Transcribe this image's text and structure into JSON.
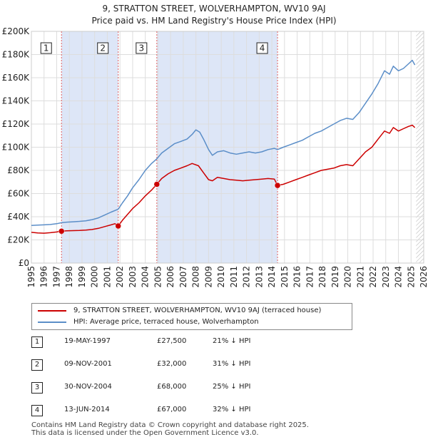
{
  "chart_data": {
    "type": "line",
    "title": "9, STRATTON STREET, WOLVERHAMPTON, WV10 9AJ",
    "subtitle": "Price paid vs. HM Land Registry's House Price Index (HPI)",
    "xlim": [
      1995,
      2026
    ],
    "ylim": [
      0,
      200000
    ],
    "x_ticks": [
      1995,
      1996,
      1997,
      1998,
      1999,
      2000,
      2001,
      2002,
      2003,
      2004,
      2005,
      2006,
      2007,
      2008,
      2009,
      2010,
      2011,
      2012,
      2013,
      2014,
      2015,
      2016,
      2017,
      2018,
      2019,
      2020,
      2021,
      2022,
      2023,
      2024,
      2025,
      2026
    ],
    "y_ticks": [
      {
        "value": 0,
        "label": "£0"
      },
      {
        "value": 20000,
        "label": "£20K"
      },
      {
        "value": 40000,
        "label": "£40K"
      },
      {
        "value": 60000,
        "label": "£60K"
      },
      {
        "value": 80000,
        "label": "£80K"
      },
      {
        "value": 100000,
        "label": "£100K"
      },
      {
        "value": 120000,
        "label": "£120K"
      },
      {
        "value": 140000,
        "label": "£140K"
      },
      {
        "value": 160000,
        "label": "£160K"
      },
      {
        "value": 180000,
        "label": "£180K"
      },
      {
        "value": 200000,
        "label": "£200K"
      }
    ],
    "grid": true,
    "series": [
      {
        "name": "9, STRATTON STREET, WOLVERHAMPTON, WV10 9AJ (terraced house)",
        "color": "#cc0000",
        "x": [
          1995.0,
          1995.5,
          1996.0,
          1996.5,
          1997.0,
          1997.38,
          1997.8,
          1998.3,
          1998.8,
          1999.3,
          1999.8,
          2000.3,
          2000.8,
          2001.3,
          2001.6,
          2001.86,
          2002.2,
          2002.6,
          2003.0,
          2003.5,
          2004.0,
          2004.5,
          2004.91,
          2005.3,
          2005.8,
          2006.3,
          2006.8,
          2007.3,
          2007.7,
          2008.2,
          2008.6,
          2009.0,
          2009.3,
          2009.7,
          2010.2,
          2010.7,
          2011.2,
          2011.7,
          2012.2,
          2012.7,
          2013.2,
          2013.7,
          2014.2,
          2014.45,
          2014.9,
          2015.4,
          2015.9,
          2016.4,
          2016.9,
          2017.4,
          2017.9,
          2018.4,
          2018.9,
          2019.4,
          2019.9,
          2020.4,
          2020.9,
          2021.4,
          2021.9,
          2022.4,
          2022.9,
          2023.3,
          2023.6,
          2024.0,
          2024.4,
          2024.8,
          2025.1,
          2025.3
        ],
        "y": [
          26500,
          26000,
          25800,
          26200,
          26800,
          27500,
          27800,
          28000,
          28200,
          28500,
          29000,
          30000,
          31500,
          33000,
          34000,
          32000,
          37000,
          42000,
          47000,
          52000,
          58000,
          63000,
          68000,
          73000,
          77000,
          80000,
          82000,
          84000,
          86000,
          84000,
          78000,
          72000,
          71000,
          74000,
          73000,
          72000,
          71500,
          71000,
          71500,
          72000,
          72500,
          73000,
          72500,
          67000,
          68000,
          70000,
          72000,
          74000,
          76000,
          78000,
          80000,
          81000,
          82000,
          84000,
          85000,
          84000,
          90000,
          96000,
          100000,
          107000,
          114000,
          112000,
          117000,
          114000,
          116000,
          118000,
          119000,
          117000
        ]
      },
      {
        "name": "HPI: Average price, terraced house, Wolverhampton",
        "color": "#5b8ec8",
        "x": [
          1995.0,
          1995.5,
          1996.0,
          1996.5,
          1997.0,
          1997.38,
          1997.8,
          1998.3,
          1998.8,
          1999.3,
          1999.8,
          2000.3,
          2000.8,
          2001.3,
          2001.86,
          2002.2,
          2002.6,
          2003.0,
          2003.5,
          2004.0,
          2004.5,
          2004.91,
          2005.3,
          2005.8,
          2006.3,
          2006.8,
          2007.3,
          2007.7,
          2008.0,
          2008.3,
          2008.6,
          2009.0,
          2009.3,
          2009.7,
          2010.2,
          2010.7,
          2011.2,
          2011.7,
          2012.2,
          2012.7,
          2013.2,
          2013.7,
          2014.2,
          2014.45,
          2014.9,
          2015.4,
          2015.9,
          2016.4,
          2016.9,
          2017.4,
          2017.9,
          2018.4,
          2018.9,
          2019.4,
          2019.9,
          2020.4,
          2020.9,
          2021.4,
          2021.9,
          2022.4,
          2022.9,
          2023.3,
          2023.6,
          2024.0,
          2024.4,
          2024.8,
          2025.1,
          2025.3
        ],
        "y": [
          32500,
          32800,
          33000,
          33300,
          34000,
          34800,
          35300,
          35600,
          36000,
          36500,
          37500,
          39000,
          41500,
          44000,
          46500,
          52000,
          58000,
          65000,
          72000,
          80000,
          86000,
          90000,
          95000,
          99000,
          103000,
          105000,
          107000,
          111000,
          115000,
          113000,
          107000,
          98000,
          93000,
          96000,
          97000,
          95000,
          94000,
          95000,
          96000,
          95000,
          96000,
          98000,
          99000,
          98000,
          100000,
          102000,
          104000,
          106000,
          109000,
          112000,
          114000,
          117000,
          120000,
          123000,
          125000,
          124000,
          130000,
          138000,
          146000,
          155000,
          166000,
          163000,
          170000,
          166000,
          168000,
          172000,
          175000,
          171000
        ]
      }
    ],
    "transactions": [
      {
        "id": "1",
        "x": 1997.38,
        "y": 27500,
        "date": "19-MAY-1997",
        "price": "£27,500",
        "hpi": "21% ↓ HPI"
      },
      {
        "id": "2",
        "x": 2001.86,
        "y": 32000,
        "date": "09-NOV-2001",
        "price": "£32,000",
        "hpi": "31% ↓ HPI"
      },
      {
        "id": "3",
        "x": 2004.91,
        "y": 68000,
        "date": "30-NOV-2004",
        "price": "£68,000",
        "hpi": "25% ↓ HPI"
      },
      {
        "id": "4",
        "x": 2014.45,
        "y": 67000,
        "date": "13-JUN-2014",
        "price": "£67,000",
        "hpi": "32% ↓ HPI"
      }
    ],
    "shaded_periods": [
      [
        1997.38,
        2001.86
      ],
      [
        2004.91,
        2014.45
      ]
    ],
    "hatched_from": 2025.4,
    "legend_position": "below"
  },
  "colors": {
    "price_line": "#cc0000",
    "hpi_line": "#5b8ec8",
    "shade": "#dde6f7",
    "grid": "#dddddd",
    "vline": "#e06060"
  },
  "legend": {
    "price_label": "9, STRATTON STREET, WOLVERHAMPTON, WV10 9AJ (terraced house)",
    "hpi_label": "HPI: Average price, terraced house, Wolverhampton"
  },
  "footer": {
    "line1": "Contains HM Land Registry data © Crown copyright and database right 2025.",
    "line2": "This data is licensed under the Open Government Licence v3.0."
  }
}
